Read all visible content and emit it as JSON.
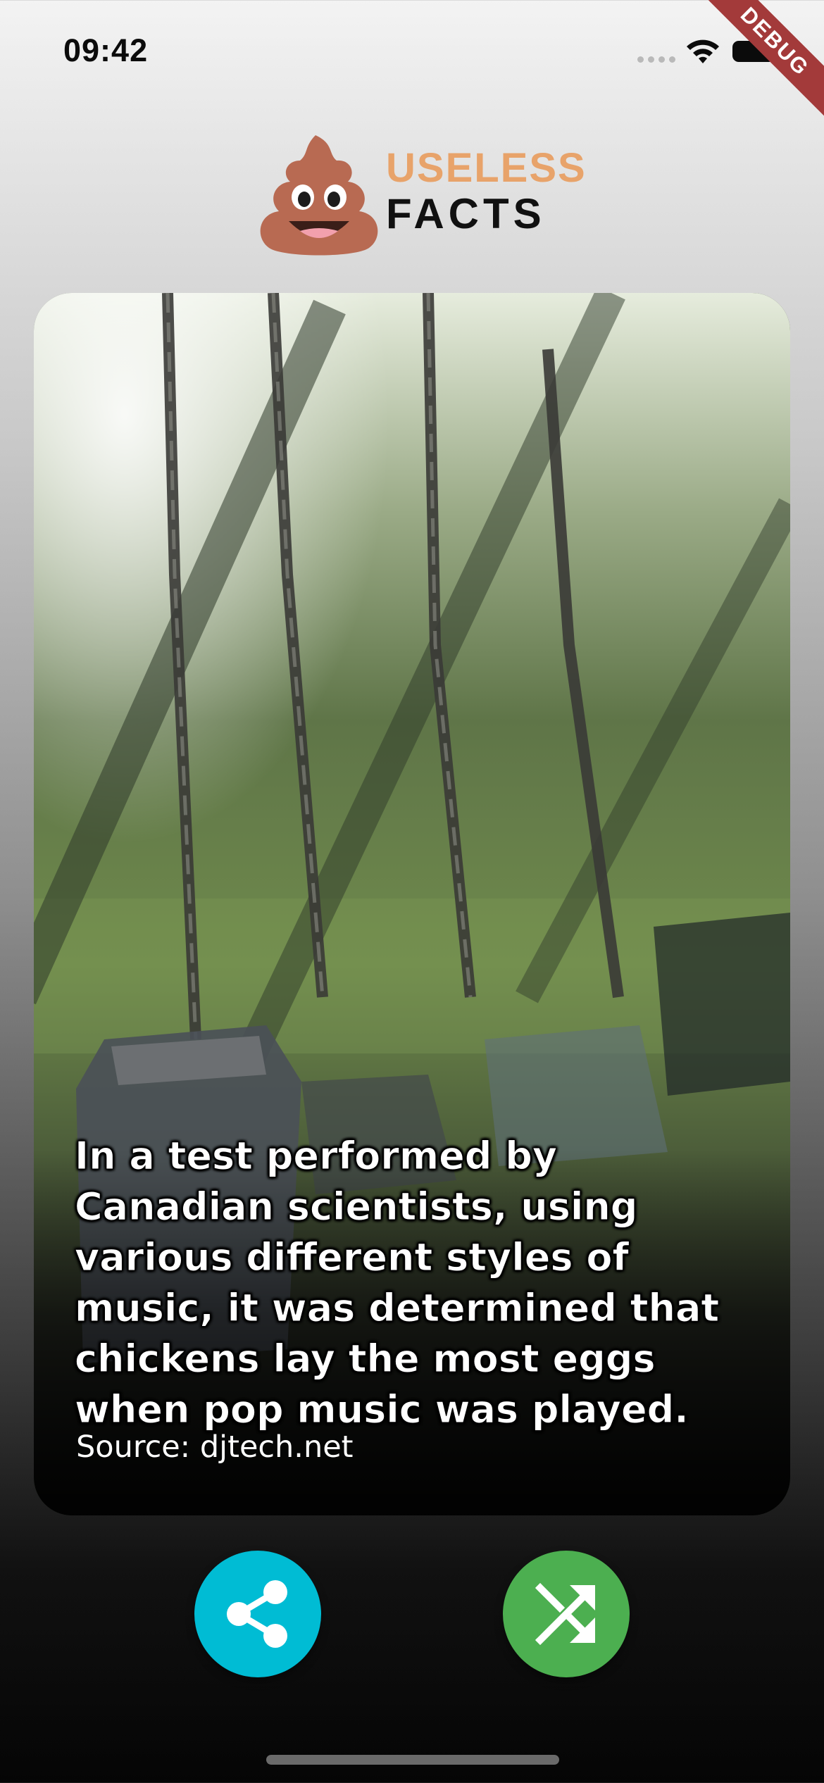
{
  "status_bar": {
    "time": "09:42",
    "debug_label": "DEBUG"
  },
  "logo": {
    "line1": "USELESS",
    "line2": "FACTS",
    "mascot_icon": "poop-emoji-icon"
  },
  "fact": {
    "text": "In a test performed by Canadian scientists, using various different styles of music, it was determined that chickens lay the most eggs when pop music was played.",
    "source": "Source: djtech.net"
  },
  "actions": {
    "share_icon": "share-icon",
    "shuffle_icon": "shuffle-icon"
  },
  "colors": {
    "share": "#00bcd4",
    "shuffle": "#4caf50",
    "logo_accent": "#e8a36a",
    "debug_banner": "#a33a3a"
  }
}
